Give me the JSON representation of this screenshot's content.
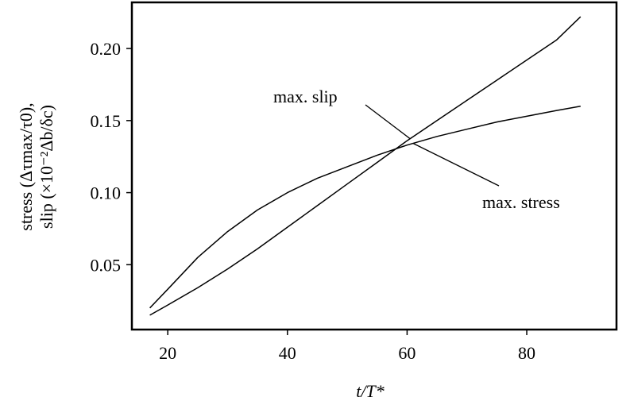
{
  "chart_data": {
    "type": "line",
    "title": "",
    "xlabel": "t/T*",
    "ylabel_line1": "stress (Δτmax/τ0),",
    "ylabel_line2": "slip (×10⁻²Δb/δc)",
    "xlim": [
      14,
      95
    ],
    "ylim": [
      0.005,
      0.232
    ],
    "xticks": [
      20,
      40,
      60,
      80
    ],
    "xtick_labels": [
      "20",
      "40",
      "60",
      "80"
    ],
    "yticks": [
      0.05,
      0.1,
      0.15,
      0.2
    ],
    "ytick_labels": [
      "0.05",
      "0.10",
      "0.15",
      "0.20"
    ],
    "grid": false,
    "series": [
      {
        "name": "max. slip",
        "x": [
          17,
          20,
          25,
          30,
          35,
          40,
          45,
          50,
          55,
          60,
          65,
          70,
          75,
          80,
          85,
          89
        ],
        "y": [
          0.015,
          0.022,
          0.034,
          0.047,
          0.061,
          0.076,
          0.091,
          0.106,
          0.121,
          0.136,
          0.15,
          0.164,
          0.178,
          0.192,
          0.206,
          0.222
        ]
      },
      {
        "name": "max. stress",
        "x": [
          17,
          20,
          25,
          30,
          35,
          40,
          45,
          50,
          55,
          60,
          65,
          70,
          75,
          80,
          85,
          89
        ],
        "y": [
          0.02,
          0.033,
          0.055,
          0.073,
          0.088,
          0.1,
          0.11,
          0.118,
          0.126,
          0.133,
          0.139,
          0.144,
          0.149,
          0.153,
          0.157,
          0.16
        ]
      }
    ],
    "annotations": [
      {
        "text": "max. slip",
        "target_series": 0,
        "target_x": 60.5
      },
      {
        "text": "max. stress",
        "target_series": 1,
        "target_x": 61
      }
    ]
  }
}
